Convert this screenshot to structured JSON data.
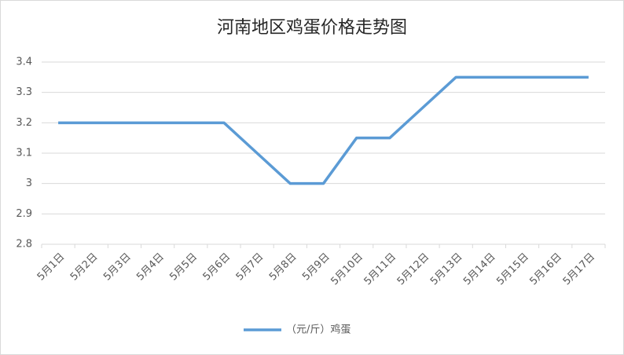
{
  "chart_data": {
    "type": "line",
    "title": "河南地区鸡蛋价格走势图",
    "categories": [
      "5月1日",
      "5月2日",
      "5月3日",
      "5月4日",
      "5月5日",
      "5月6日",
      "5月7日",
      "5月8日",
      "5月9日",
      "5月10日",
      "5月11日",
      "5月12日",
      "5月13日",
      "5月14日",
      "5月15日",
      "5月16日",
      "5月17日"
    ],
    "series": [
      {
        "name": "（元/斤）鸡蛋",
        "color": "#5b9bd5",
        "values": [
          3.2,
          3.2,
          3.2,
          3.2,
          3.2,
          3.2,
          3.1,
          3.0,
          3.0,
          3.15,
          3.15,
          3.25,
          3.35,
          3.35,
          3.35,
          3.35,
          3.35
        ]
      }
    ],
    "ylim": [
      2.8,
      3.4
    ],
    "yticks": [
      2.8,
      2.9,
      3,
      3.1,
      3.2,
      3.3,
      3.4
    ],
    "grid": true,
    "legend": "bottom"
  }
}
